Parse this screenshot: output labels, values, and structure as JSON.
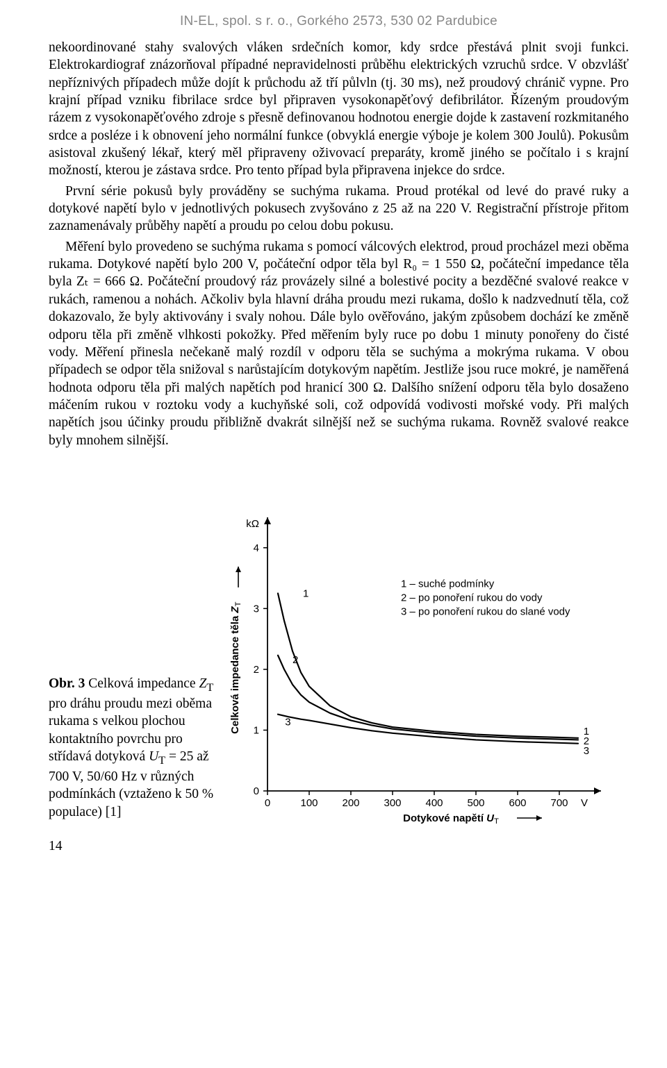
{
  "header": "IN-EL, spol. s r. o., Gorkého 2573, 530 02 Pardubice",
  "paragraphs": {
    "p1": "nekoordinované stahy svalových vláken srdečních komor, kdy srdce přestává plnit svoji funkci. Elektrokardiograf znázorňoval případné nepravidelnosti průběhu elektrických vzruchů srdce. V obzvlášť nepříznivých případech může dojít k průchodu až tří půlvln (tj. 30 ms), než proudový chránič vypne. Pro krajní případ vzniku fibrilace srdce byl připraven vysokonapěťový defibrilátor. Řízeným proudovým rázem z vysokonapěťového zdroje s přesně definovanou hodnotou energie dojde k zastavení rozkmitaného srdce a posléze i k obnovení jeho normální funkce (obvyklá energie výboje je kolem 300 Joulů). Pokusům asistoval zkušený lékař, který měl připraveny oživovací preparáty, kromě jiného se počítalo i s krajní možností, kterou je zástava srdce. Pro tento případ byla připravena injekce do srdce.",
    "p2": "První série pokusů byly prováděny se suchýma rukama. Proud protékal od levé do pravé ruky a dotykové napětí bylo v jednotlivých pokusech zvyšováno z 25 až na 220 V. Registrační přístroje přitom zaznamenávaly průběhy napětí a proudu po celou dobu pokusu.",
    "p3": "Měření bylo provedeno se suchýma rukama s pomocí válcových elektrod, proud procházel mezi oběma rukama. Dotykové napětí bylo 200 V, počáteční odpor těla byl R₀ = 1 550 Ω, počáteční impedance těla byla Zₜ = 666 Ω. Počáteční proudový ráz provázely silné a bolestivé pocity a bezděčné svalové reakce v rukách, ramenou a nohách. Ačkoliv byla hlavní dráha proudu mezi rukama, došlo k nadzvednutí těla, což dokazovalo, že byly aktivovány i svaly nohou. Dále bylo ověřováno, jakým způsobem dochází ke změně odporu těla při změně vlhkosti pokožky. Před měřením byly ruce po dobu 1 minuty ponořeny do čisté vody. Měření přinesla nečekaně malý rozdíl v odporu těla se suchýma a mokrýma rukama. V obou případech se odpor těla snižoval s narůstajícím dotykovým napětím. Jestliže jsou ruce mokré, je naměřená hodnota odporu těla při malých napětích pod hranicí 300 Ω. Dalšího snížení odporu těla bylo dosaženo máčením rukou v roztoku vody a kuchyňské soli, což odpovídá vodivosti mořské vody. Při malých napětích jsou účinky proudu přibližně dvakrát silnější než se suchýma rukama. Rovněž svalové reakce byly mnohem silnější."
  },
  "figure": {
    "caption_prefix": "Obr. 3",
    "caption_body": " Celková impedance ",
    "caption_var1": "Z",
    "caption_var1_sub": "T",
    "caption_body2": " pro dráhu proudu mezi oběma rukama s velkou plochou kontaktního povrchu pro střídavá dotyková ",
    "caption_var2": "U",
    "caption_var2_sub": "T",
    "caption_body3": " = 25 až 700 V, 50/60 Hz v různých podmínkách (vztaženo k 50 % populace) [1]",
    "chart": {
      "type": "line",
      "background": "#ffffff",
      "axis_color": "#000000",
      "axis_width": 1.8,
      "curve_color": "#000000",
      "curve_width": 2.2,
      "grid": false,
      "xlabel": "Dotykové napětí",
      "xlabel_var": "U",
      "xlabel_sub": "T",
      "xunit": "V",
      "ylabel": "Celková impedance těla",
      "ylabel_var": "Z",
      "ylabel_sub": "T",
      "yunit": "kΩ",
      "xlim": [
        0,
        800
      ],
      "ylim": [
        0,
        4.5
      ],
      "xticks": [
        0,
        100,
        200,
        300,
        400,
        500,
        600,
        700
      ],
      "yticks": [
        0,
        1,
        2,
        3,
        4
      ],
      "tick_fontsize": 15,
      "label_fontsize": 15,
      "legend_fontsize": 15,
      "arrow_size": 10,
      "series": [
        {
          "label": "1",
          "legend": "1 – suché podmínky",
          "points": [
            [
              25,
              3.25
            ],
            [
              40,
              2.8
            ],
            [
              60,
              2.3
            ],
            [
              80,
              1.95
            ],
            [
              100,
              1.72
            ],
            [
              150,
              1.4
            ],
            [
              200,
              1.22
            ],
            [
              250,
              1.12
            ],
            [
              300,
              1.05
            ],
            [
              400,
              0.98
            ],
            [
              500,
              0.93
            ],
            [
              600,
              0.9
            ],
            [
              700,
              0.88
            ],
            [
              745,
              0.87
            ]
          ],
          "label_at": [
            85,
            3.19
          ],
          "right_label_y": 0.97
        },
        {
          "label": "2",
          "legend": "2 – po ponoření rukou do vody",
          "points": [
            [
              25,
              2.23
            ],
            [
              40,
              2.0
            ],
            [
              60,
              1.75
            ],
            [
              80,
              1.58
            ],
            [
              100,
              1.46
            ],
            [
              150,
              1.28
            ],
            [
              200,
              1.16
            ],
            [
              250,
              1.08
            ],
            [
              300,
              1.02
            ],
            [
              400,
              0.95
            ],
            [
              500,
              0.9
            ],
            [
              600,
              0.87
            ],
            [
              700,
              0.85
            ],
            [
              745,
              0.84
            ]
          ],
          "label_at": [
            60,
            2.1
          ],
          "right_label_y": 0.81
        },
        {
          "label": "3",
          "legend": "3 – po ponoření rukou do slané vody",
          "points": [
            [
              25,
              1.26
            ],
            [
              50,
              1.22
            ],
            [
              80,
              1.18
            ],
            [
              100,
              1.16
            ],
            [
              150,
              1.1
            ],
            [
              200,
              1.04
            ],
            [
              250,
              0.99
            ],
            [
              300,
              0.95
            ],
            [
              400,
              0.89
            ],
            [
              500,
              0.84
            ],
            [
              600,
              0.81
            ],
            [
              700,
              0.79
            ],
            [
              745,
              0.78
            ]
          ],
          "label_at": [
            42,
            1.08
          ],
          "right_label_y": 0.65
        }
      ]
    }
  },
  "page_number": "14"
}
